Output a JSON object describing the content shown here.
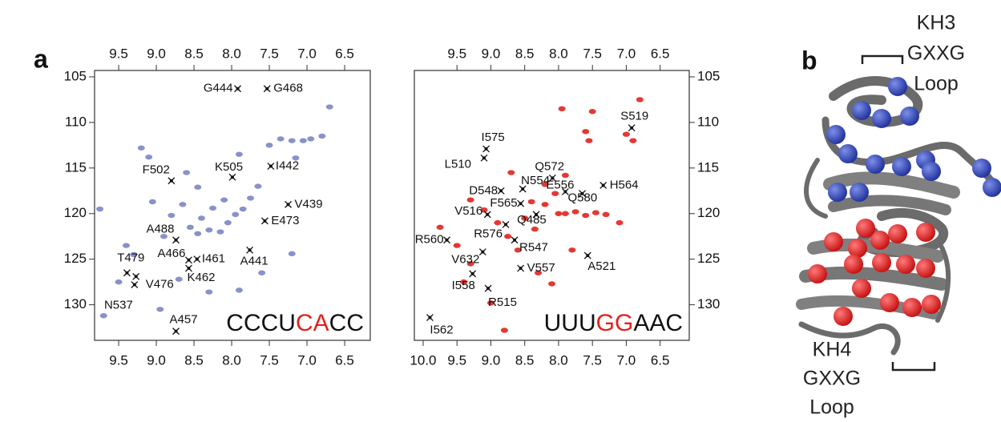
{
  "panel_a_label": "a",
  "chart_data": [
    {
      "type": "scatter",
      "y_axis_side": "left",
      "xlim": [
        9.82,
        6.16
      ],
      "ylim": [
        133.9,
        104.3
      ],
      "xticks": [
        9.5,
        {
          "value": 9,
          "label": "9.0"
        },
        8.5,
        {
          "value": 8,
          "label": "8.0"
        },
        7.5,
        {
          "value": 7,
          "label": "7.0"
        },
        6.5
      ],
      "x2ticks": [
        9.5,
        {
          "value": 9,
          "label": "9.0"
        },
        8.5,
        {
          "value": 8,
          "label": "8.0"
        },
        7.5,
        {
          "value": 7,
          "label": "7.0"
        },
        6.5
      ],
      "yticks": [
        105,
        110,
        115,
        120,
        125,
        130
      ],
      "sequence": [
        {
          "text": "CCCU",
          "color": "#111111"
        },
        {
          "text": "CA",
          "color": "#e3211c"
        },
        {
          "text": "CC",
          "color": "#111111"
        }
      ],
      "series": [
        {
          "color": "#7b86c4",
          "x": [
            9.75,
            9.5,
            9.4,
            9.3,
            9.2,
            9.1,
            9.05,
            8.9,
            8.8,
            8.65,
            8.55,
            8.45,
            8.4,
            8.3,
            8.25,
            8.15,
            8.05,
            7.95,
            7.85,
            7.75,
            7.65,
            7.5,
            7.35,
            7.2,
            7.05,
            6.95,
            6.8,
            7.9,
            8.1,
            8.7,
            8.3,
            7.9,
            7.6,
            7.2,
            7.15,
            6.7,
            8.95,
            9.7,
            8.6,
            8.45
          ],
          "values": [
            119.5,
            127.5,
            123.5,
            124.5,
            112.8,
            113.8,
            118.7,
            122.5,
            120.2,
            119.0,
            121.5,
            122.2,
            120.5,
            121.8,
            119.4,
            122.0,
            121.0,
            120.1,
            119.5,
            118.3,
            117.0,
            112.5,
            111.8,
            112.0,
            112.0,
            111.8,
            111.5,
            113.5,
            118.5,
            127.2,
            128.6,
            128.4,
            126.5,
            124.4,
            113.9,
            108.3,
            130.5,
            131.2,
            115.5,
            117.1
          ]
        },
        {
          "color": "#111111",
          "x": [
            7.92,
            7.53,
            7.48,
            7.99,
            8.8,
            7.25,
            7.56,
            8.74,
            8.57,
            8.46,
            7.76,
            9.39,
            8.57,
            9.27,
            9.29,
            8.74
          ],
          "values": [
            106.3,
            106.3,
            114.8,
            116.0,
            116.4,
            119.0,
            120.8,
            122.9,
            125.1,
            125.0,
            124.0,
            126.5,
            126.0,
            126.9,
            127.8,
            132.9
          ],
          "labels": [
            "G444",
            "G468",
            "I442",
            "K505",
            "F502",
            "V439",
            "E473",
            "A488",
            "A466",
            "I461",
            "A441",
            "T479",
            "K462",
            "V476",
            "N537",
            "A457"
          ]
        }
      ]
    },
    {
      "type": "scatter",
      "y_axis_side": "right",
      "xlim": [
        10.13,
        6.07
      ],
      "ylim": [
        133.9,
        104.3
      ],
      "xticks": [
        {
          "value": 10,
          "label": "10.0"
        },
        9.5,
        {
          "value": 9,
          "label": "9.0"
        },
        8.5,
        {
          "value": 8,
          "label": "8.0"
        },
        7.5,
        {
          "value": 7,
          "label": "7.0"
        },
        6.5
      ],
      "x2ticks": [
        9.5,
        {
          "value": 9,
          "label": "9.0"
        },
        8.5,
        {
          "value": 8,
          "label": "8.0"
        },
        7.5,
        {
          "value": 7,
          "label": "7.0"
        },
        6.5
      ],
      "yticks": [
        105,
        110,
        115,
        120,
        125,
        130
      ],
      "sequence": [
        {
          "text": "UUU",
          "color": "#111111"
        },
        {
          "text": "GG",
          "color": "#e3211c"
        },
        {
          "text": "AAC",
          "color": "#111111"
        }
      ],
      "series": [
        {
          "color": "#e3211c",
          "x": [
            9.75,
            9.5,
            9.3,
            9.4,
            9.0,
            8.8,
            9.1,
            8.9,
            8.75,
            8.6,
            8.5,
            8.35,
            8.2,
            8.0,
            7.9,
            7.75,
            7.6,
            7.45,
            7.3,
            7.6,
            7.55,
            7.0,
            6.9,
            8.2,
            8.05,
            8.4,
            7.8,
            7.1,
            8.3,
            8.1,
            7.95,
            7.5,
            6.8,
            9.3,
            8.7,
            7.9
          ],
          "values": [
            121.5,
            123.5,
            125.5,
            127.5,
            129.8,
            132.8,
            119.6,
            121.0,
            122.5,
            124.0,
            120.5,
            121.7,
            119.0,
            120.0,
            120.0,
            119.8,
            120.2,
            119.9,
            120.1,
            111.0,
            112.0,
            111.3,
            112.0,
            116.8,
            117.8,
            118.7,
            124.0,
            121.0,
            126.5,
            127.7,
            108.5,
            108.8,
            107.5,
            118.5,
            115.5,
            115.8
          ]
        },
        {
          "color": "#111111",
          "x": [
            6.92,
            9.07,
            9.1,
            8.09,
            7.34,
            8.53,
            8.85,
            7.9,
            7.65,
            8.56,
            9.05,
            8.33,
            8.78,
            9.65,
            8.65,
            9.12,
            7.57,
            8.56,
            9.27,
            9.04,
            9.9
          ],
          "values": [
            110.6,
            112.9,
            113.9,
            116.1,
            116.9,
            117.3,
            117.5,
            117.6,
            117.8,
            118.9,
            120.1,
            120.1,
            121.2,
            122.9,
            122.9,
            124.2,
            124.6,
            126.0,
            126.6,
            128.2,
            131.4
          ],
          "labels": [
            "S519",
            "I575",
            "L510",
            "Q572",
            "H564",
            "N554",
            "D548",
            "E556",
            "Q580",
            "F565",
            "V516",
            "Q485",
            "R576",
            "R560",
            "R547",
            "V632",
            "A521",
            "V557",
            "I558",
            "R515",
            "I562"
          ]
        }
      ]
    }
  ],
  "panel_b": {
    "label": "b",
    "top_annotation": [
      "KH3",
      "GXXG",
      "Loop"
    ],
    "bottom_annotation": [
      "KH4",
      "GXXG",
      "Loop"
    ]
  }
}
